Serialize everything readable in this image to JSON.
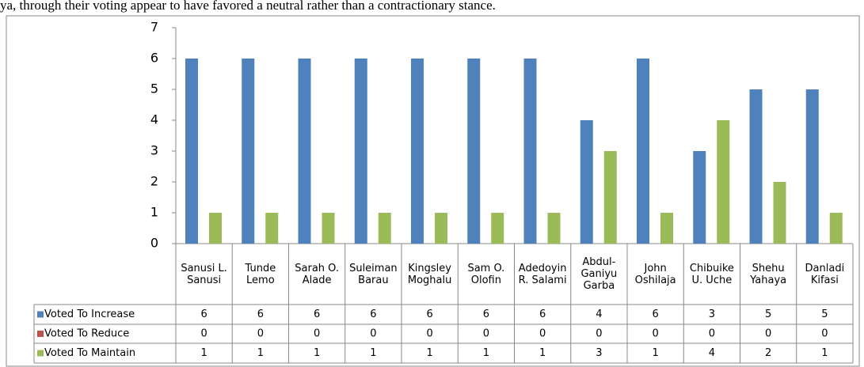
{
  "caption": "ya, through their voting appear to have favored a neutral rather than a contractionary stance.",
  "chart_data": {
    "type": "bar",
    "categories": [
      "Sanusi L. Sanusi",
      "Tunde Lemo",
      "Sarah O. Alade",
      "Suleiman Barau",
      "Kingsley Moghalu",
      "Sam O. Olofin",
      "Adedoyin R. Salami",
      "Abdul-Ganiyu Garba",
      "John Oshilaja",
      "Chibuike U. Uche",
      "Shehu Yahaya",
      "Danladi Kifasi"
    ],
    "series": [
      {
        "name": "Voted To Increase",
        "color": "#4f81bd",
        "values": [
          6,
          6,
          6,
          6,
          6,
          6,
          6,
          4,
          6,
          3,
          5,
          5
        ]
      },
      {
        "name": "Voted To Reduce",
        "color": "#c0504d",
        "values": [
          0,
          0,
          0,
          0,
          0,
          0,
          0,
          0,
          0,
          0,
          0,
          0
        ]
      },
      {
        "name": "Voted To Maintain",
        "color": "#9bbb59",
        "values": [
          1,
          1,
          1,
          1,
          1,
          1,
          1,
          3,
          1,
          4,
          2,
          1
        ]
      }
    ],
    "ylim": [
      0,
      7
    ],
    "yticks": [
      0,
      1,
      2,
      3,
      4,
      5,
      6,
      7
    ],
    "grid": false,
    "legend": "table"
  }
}
